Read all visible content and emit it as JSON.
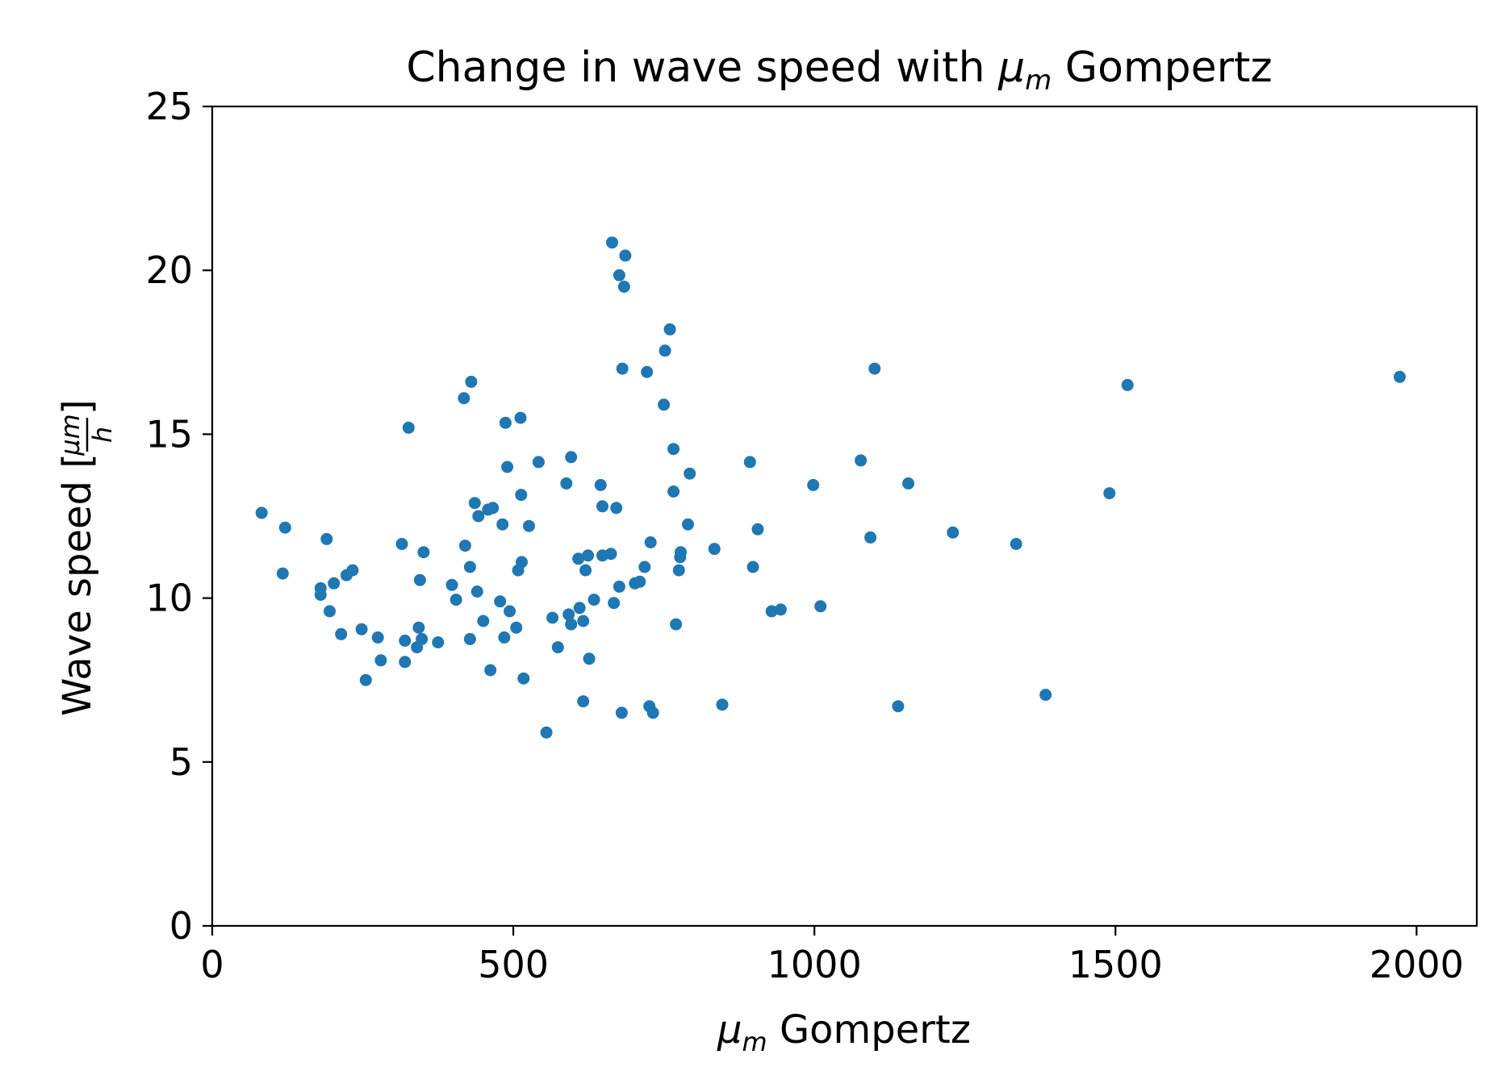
{
  "chart_data": {
    "type": "scatter",
    "title": {
      "prefix": "Change in wave speed with ",
      "mu": "μ",
      "sub": "m",
      "suffix": " Gompertz"
    },
    "xlabel": {
      "mu": "μ",
      "sub": "m",
      "suffix": " Gompertz"
    },
    "ylabel": {
      "prefix": "Wave speed [",
      "frac_num": "μm",
      "frac_den": "h",
      "suffix": "]"
    },
    "xlim": [
      0,
      2100
    ],
    "ylim": [
      0,
      25
    ],
    "x_ticks": [
      0,
      500,
      1000,
      1500,
      2000
    ],
    "x_tick_labels": [
      "0",
      "500",
      "1000",
      "1500",
      "2000"
    ],
    "y_ticks": [
      0,
      5,
      10,
      15,
      20,
      25
    ],
    "y_tick_labels": [
      "0",
      "5",
      "10",
      "15",
      "20",
      "25"
    ],
    "grid": false,
    "marker_color": "#1f77b4",
    "series": [
      {
        "points": [
          [
            82,
            12.6
          ],
          [
            117,
            10.75
          ],
          [
            121,
            12.15
          ],
          [
            180,
            10.3
          ],
          [
            180,
            10.1
          ],
          [
            190,
            11.8
          ],
          [
            195,
            9.6
          ],
          [
            202,
            10.45
          ],
          [
            214,
            8.9
          ],
          [
            223,
            10.7
          ],
          [
            233,
            10.85
          ],
          [
            248,
            9.05
          ],
          [
            255,
            7.5
          ],
          [
            275,
            8.8
          ],
          [
            280,
            8.1
          ],
          [
            315,
            11.65
          ],
          [
            320,
            8.05
          ],
          [
            320,
            8.7
          ],
          [
            326,
            15.2
          ],
          [
            340,
            8.5
          ],
          [
            343,
            9.1
          ],
          [
            345,
            10.55
          ],
          [
            348,
            8.75
          ],
          [
            351,
            11.4
          ],
          [
            375,
            8.65
          ],
          [
            398,
            10.4
          ],
          [
            405,
            9.95
          ],
          [
            418,
            16.1
          ],
          [
            420,
            11.6
          ],
          [
            428,
            8.75
          ],
          [
            428,
            10.95
          ],
          [
            430,
            16.6
          ],
          [
            436,
            12.9
          ],
          [
            440,
            10.2
          ],
          [
            442,
            12.5
          ],
          [
            450,
            9.3
          ],
          [
            458,
            12.7
          ],
          [
            462,
            7.8
          ],
          [
            466,
            12.75
          ],
          [
            478,
            9.9
          ],
          [
            482,
            12.25
          ],
          [
            485,
            8.8
          ],
          [
            487,
            15.35
          ],
          [
            490,
            14.0
          ],
          [
            494,
            9.6
          ],
          [
            505,
            9.1
          ],
          [
            508,
            10.85
          ],
          [
            512,
            15.5
          ],
          [
            513,
            13.15
          ],
          [
            514,
            11.1
          ],
          [
            517,
            7.55
          ],
          [
            526,
            12.2
          ],
          [
            542,
            14.15
          ],
          [
            555,
            5.9
          ],
          [
            565,
            9.4
          ],
          [
            574,
            8.5
          ],
          [
            588,
            13.5
          ],
          [
            592,
            9.5
          ],
          [
            596,
            9.2
          ],
          [
            596,
            14.3
          ],
          [
            608,
            11.2
          ],
          [
            610,
            9.7
          ],
          [
            616,
            9.3
          ],
          [
            616,
            6.85
          ],
          [
            620,
            10.85
          ],
          [
            624,
            11.3
          ],
          [
            626,
            8.15
          ],
          [
            634,
            9.95
          ],
          [
            645,
            13.45
          ],
          [
            648,
            12.8
          ],
          [
            648,
            11.3
          ],
          [
            662,
            11.35
          ],
          [
            664,
            20.85
          ],
          [
            667,
            9.85
          ],
          [
            671,
            12.75
          ],
          [
            676,
            10.35
          ],
          [
            676,
            19.85
          ],
          [
            680,
            6.5
          ],
          [
            681,
            17.0
          ],
          [
            684,
            19.5
          ],
          [
            686,
            20.45
          ],
          [
            702,
            10.45
          ],
          [
            710,
            10.5
          ],
          [
            718,
            10.95
          ],
          [
            722,
            16.9
          ],
          [
            726,
            6.7
          ],
          [
            728,
            11.7
          ],
          [
            732,
            6.5
          ],
          [
            750,
            15.9
          ],
          [
            752,
            17.55
          ],
          [
            760,
            18.2
          ],
          [
            766,
            13.25
          ],
          [
            766,
            14.55
          ],
          [
            770,
            9.2
          ],
          [
            775,
            10.85
          ],
          [
            777,
            11.25
          ],
          [
            778,
            11.4
          ],
          [
            790,
            12.25
          ],
          [
            793,
            13.8
          ],
          [
            834,
            11.5
          ],
          [
            847,
            6.75
          ],
          [
            893,
            14.15
          ],
          [
            898,
            10.95
          ],
          [
            906,
            12.1
          ],
          [
            929,
            9.6
          ],
          [
            944,
            9.65
          ],
          [
            998,
            13.45
          ],
          [
            1010,
            9.75
          ],
          [
            1077,
            14.2
          ],
          [
            1093,
            11.85
          ],
          [
            1100,
            17.0
          ],
          [
            1139,
            6.7
          ],
          [
            1156,
            13.5
          ],
          [
            1230,
            12.0
          ],
          [
            1335,
            11.65
          ],
          [
            1384,
            7.05
          ],
          [
            1490,
            13.2
          ],
          [
            1520,
            16.5
          ],
          [
            1972,
            16.75
          ]
        ]
      }
    ]
  }
}
